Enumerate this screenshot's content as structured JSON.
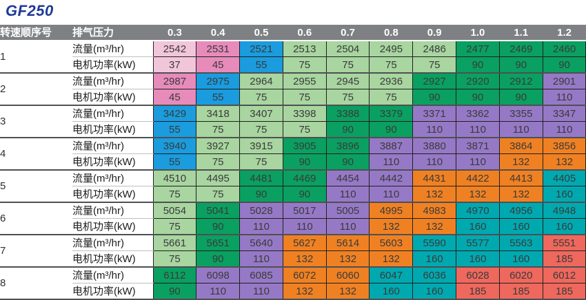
{
  "title": "GF250",
  "title_color": "#1e3a96",
  "palette": {
    "pink1": "#f2c6da",
    "pink2": "#e78bbb",
    "blue": "#1a9cde",
    "green1": "#a8d5a0",
    "green2": "#0aa061",
    "purple": "#9679c6",
    "orange": "#f08123",
    "teal": "#00a9b0",
    "red": "#ef685d",
    "header_gray": "#7e8083"
  },
  "table": {
    "header": {
      "col1": "转速顺序号",
      "col2": "排气压力",
      "pressures": [
        "0.3",
        "0.4",
        "0.5",
        "0.6",
        "0.7",
        "0.8",
        "0.9",
        "1.0",
        "1.1",
        "1.2"
      ]
    },
    "row_labels": {
      "flow": "流量(m³/hr)",
      "power": "电机功率(kW)"
    },
    "groups": [
      {
        "num": "1",
        "flow": [
          2542,
          2531,
          2521,
          2513,
          2504,
          2495,
          2486,
          2477,
          2469,
          2460
        ],
        "power": [
          37,
          45,
          55,
          75,
          75,
          75,
          75,
          90,
          90,
          90
        ],
        "colors": [
          "pink1",
          "pink2",
          "blue",
          "green1",
          "green1",
          "green1",
          "green1",
          "green2",
          "green2",
          "green2"
        ]
      },
      {
        "num": "2",
        "flow": [
          2987,
          2975,
          2964,
          2955,
          2945,
          2936,
          2927,
          2920,
          2912,
          2901
        ],
        "power": [
          45,
          55,
          75,
          75,
          75,
          75,
          90,
          90,
          90,
          110
        ],
        "colors": [
          "pink2",
          "blue",
          "green1",
          "green1",
          "green1",
          "green1",
          "green2",
          "green2",
          "green2",
          "purple"
        ]
      },
      {
        "num": "3",
        "flow": [
          3429,
          3418,
          3407,
          3398,
          3388,
          3379,
          3371,
          3362,
          3355,
          3347
        ],
        "power": [
          55,
          75,
          75,
          75,
          90,
          90,
          110,
          110,
          110,
          110
        ],
        "colors": [
          "blue",
          "green1",
          "green1",
          "green1",
          "green2",
          "green2",
          "purple",
          "purple",
          "purple",
          "purple"
        ]
      },
      {
        "num": "4",
        "flow": [
          3940,
          3927,
          3915,
          3905,
          3896,
          3887,
          3880,
          3871,
          3864,
          3856
        ],
        "power": [
          55,
          75,
          75,
          90,
          90,
          110,
          110,
          110,
          132,
          132
        ],
        "colors": [
          "blue",
          "green1",
          "green1",
          "green2",
          "green2",
          "purple",
          "purple",
          "purple",
          "orange",
          "orange"
        ]
      },
      {
        "num": "5",
        "flow": [
          4510,
          4495,
          4481,
          4469,
          4454,
          4442,
          4431,
          4422,
          4413,
          4405
        ],
        "power": [
          75,
          75,
          90,
          90,
          110,
          110,
          132,
          132,
          132,
          160
        ],
        "colors": [
          "green1",
          "green1",
          "green2",
          "green2",
          "purple",
          "purple",
          "orange",
          "orange",
          "orange",
          "teal"
        ]
      },
      {
        "num": "6",
        "flow": [
          5054,
          5041,
          5028,
          5017,
          5005,
          4995,
          4983,
          4970,
          4956,
          4948
        ],
        "power": [
          75,
          90,
          110,
          110,
          110,
          132,
          132,
          160,
          160,
          160
        ],
        "colors": [
          "green1",
          "green2",
          "purple",
          "purple",
          "purple",
          "orange",
          "orange",
          "teal",
          "teal",
          "teal"
        ]
      },
      {
        "num": "7",
        "flow": [
          5661,
          5651,
          5640,
          5627,
          5614,
          5603,
          5590,
          5577,
          5563,
          5551
        ],
        "power": [
          75,
          90,
          110,
          132,
          132,
          132,
          160,
          160,
          160,
          185
        ],
        "colors": [
          "green1",
          "green2",
          "purple",
          "orange",
          "orange",
          "orange",
          "teal",
          "teal",
          "teal",
          "red"
        ]
      },
      {
        "num": "8",
        "flow": [
          6112,
          6098,
          6085,
          6072,
          6060,
          6047,
          6036,
          6028,
          6020,
          6012
        ],
        "power": [
          90,
          110,
          110,
          132,
          132,
          160,
          160,
          185,
          185,
          185
        ],
        "colors": [
          "green2",
          "purple",
          "purple",
          "orange",
          "orange",
          "teal",
          "teal",
          "red",
          "red",
          "red"
        ]
      }
    ]
  }
}
